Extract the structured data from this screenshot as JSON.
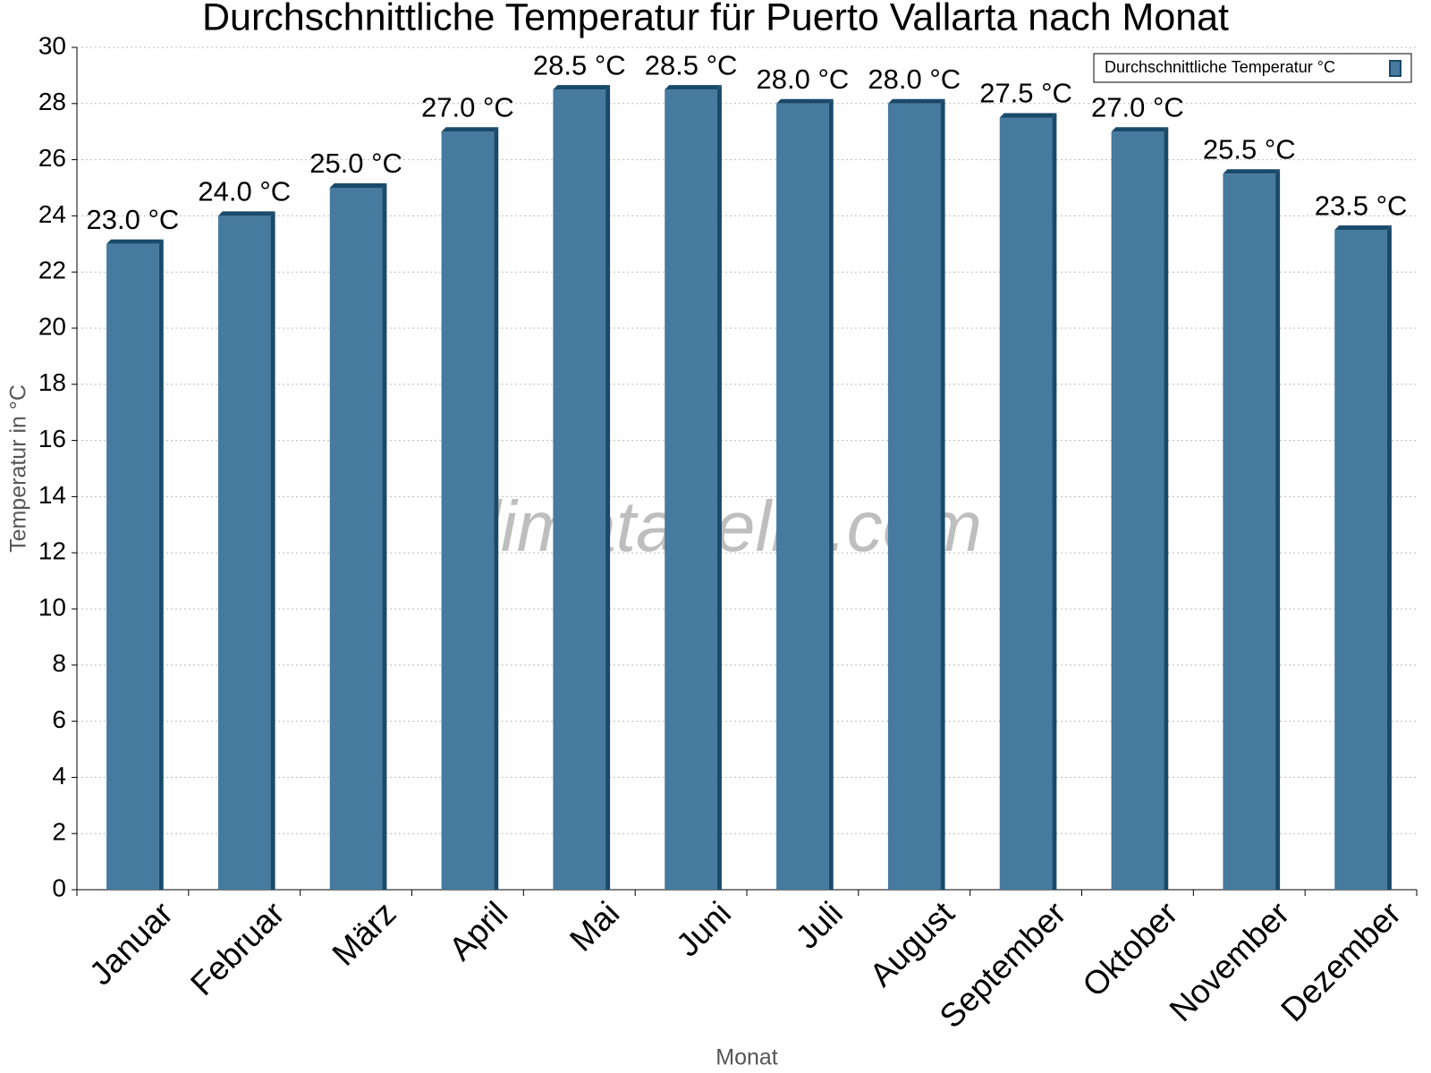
{
  "chart_data": {
    "type": "bar3d",
    "title": "Durchschnittliche Temperatur für Puerto Vallarta nach Monat",
    "x_label": "Monat",
    "y_label": "Temperatur in °C",
    "watermark": "klimatabelle.com",
    "categories": [
      "Januar",
      "Februar",
      "März",
      "April",
      "Mai",
      "Juni",
      "Juli",
      "August",
      "September",
      "Oktober",
      "November",
      "Dezember"
    ],
    "series": [
      {
        "name": "Durchschnittliche Temperatur °C",
        "color": "#467a9e",
        "side_color": "#1a4a6a",
        "values": [
          23.0,
          24.0,
          25.0,
          27.0,
          28.5,
          28.5,
          28.0,
          28.0,
          27.5,
          27.0,
          25.5,
          23.5
        ],
        "value_labels": [
          "23.0 °C",
          "24.0 °C",
          "25.0 °C",
          "27.0 °C",
          "28.5 °C",
          "28.5 °C",
          "28.0 °C",
          "28.0 °C",
          "27.5 °C",
          "27.0 °C",
          "25.5 °C",
          "23.5 °C"
        ]
      }
    ],
    "ylim": [
      0,
      30
    ],
    "yticks": [
      0,
      2,
      4,
      6,
      8,
      10,
      12,
      14,
      16,
      18,
      20,
      22,
      24,
      26,
      28,
      30
    ],
    "grid": true,
    "legend": "top-right"
  }
}
